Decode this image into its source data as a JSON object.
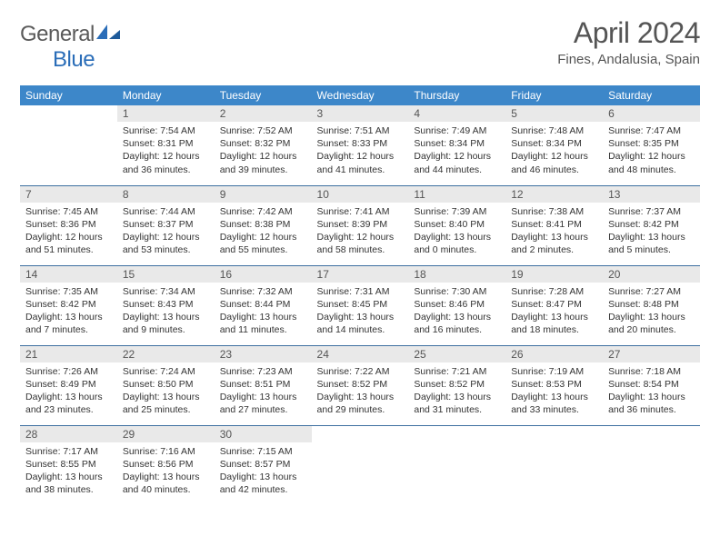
{
  "brand": {
    "word1": "General",
    "word2": "Blue"
  },
  "title": "April 2024",
  "location": "Fines, Andalusia, Spain",
  "colors": {
    "header_bg": "#3d87c9",
    "header_text": "#ffffff",
    "daynum_bg": "#e9e9e9",
    "row_border": "#3d6fa0",
    "brand_gray": "#5a5a5a",
    "brand_blue": "#2a6db8",
    "text": "#333333",
    "title_color": "#555555"
  },
  "weekdays": [
    "Sunday",
    "Monday",
    "Tuesday",
    "Wednesday",
    "Thursday",
    "Friday",
    "Saturday"
  ],
  "weeks": [
    [
      null,
      {
        "n": "1",
        "sr": "7:54 AM",
        "ss": "8:31 PM",
        "dl": "12 hours and 36 minutes."
      },
      {
        "n": "2",
        "sr": "7:52 AM",
        "ss": "8:32 PM",
        "dl": "12 hours and 39 minutes."
      },
      {
        "n": "3",
        "sr": "7:51 AM",
        "ss": "8:33 PM",
        "dl": "12 hours and 41 minutes."
      },
      {
        "n": "4",
        "sr": "7:49 AM",
        "ss": "8:34 PM",
        "dl": "12 hours and 44 minutes."
      },
      {
        "n": "5",
        "sr": "7:48 AM",
        "ss": "8:34 PM",
        "dl": "12 hours and 46 minutes."
      },
      {
        "n": "6",
        "sr": "7:47 AM",
        "ss": "8:35 PM",
        "dl": "12 hours and 48 minutes."
      }
    ],
    [
      {
        "n": "7",
        "sr": "7:45 AM",
        "ss": "8:36 PM",
        "dl": "12 hours and 51 minutes."
      },
      {
        "n": "8",
        "sr": "7:44 AM",
        "ss": "8:37 PM",
        "dl": "12 hours and 53 minutes."
      },
      {
        "n": "9",
        "sr": "7:42 AM",
        "ss": "8:38 PM",
        "dl": "12 hours and 55 minutes."
      },
      {
        "n": "10",
        "sr": "7:41 AM",
        "ss": "8:39 PM",
        "dl": "12 hours and 58 minutes."
      },
      {
        "n": "11",
        "sr": "7:39 AM",
        "ss": "8:40 PM",
        "dl": "13 hours and 0 minutes."
      },
      {
        "n": "12",
        "sr": "7:38 AM",
        "ss": "8:41 PM",
        "dl": "13 hours and 2 minutes."
      },
      {
        "n": "13",
        "sr": "7:37 AM",
        "ss": "8:42 PM",
        "dl": "13 hours and 5 minutes."
      }
    ],
    [
      {
        "n": "14",
        "sr": "7:35 AM",
        "ss": "8:42 PM",
        "dl": "13 hours and 7 minutes."
      },
      {
        "n": "15",
        "sr": "7:34 AM",
        "ss": "8:43 PM",
        "dl": "13 hours and 9 minutes."
      },
      {
        "n": "16",
        "sr": "7:32 AM",
        "ss": "8:44 PM",
        "dl": "13 hours and 11 minutes."
      },
      {
        "n": "17",
        "sr": "7:31 AM",
        "ss": "8:45 PM",
        "dl": "13 hours and 14 minutes."
      },
      {
        "n": "18",
        "sr": "7:30 AM",
        "ss": "8:46 PM",
        "dl": "13 hours and 16 minutes."
      },
      {
        "n": "19",
        "sr": "7:28 AM",
        "ss": "8:47 PM",
        "dl": "13 hours and 18 minutes."
      },
      {
        "n": "20",
        "sr": "7:27 AM",
        "ss": "8:48 PM",
        "dl": "13 hours and 20 minutes."
      }
    ],
    [
      {
        "n": "21",
        "sr": "7:26 AM",
        "ss": "8:49 PM",
        "dl": "13 hours and 23 minutes."
      },
      {
        "n": "22",
        "sr": "7:24 AM",
        "ss": "8:50 PM",
        "dl": "13 hours and 25 minutes."
      },
      {
        "n": "23",
        "sr": "7:23 AM",
        "ss": "8:51 PM",
        "dl": "13 hours and 27 minutes."
      },
      {
        "n": "24",
        "sr": "7:22 AM",
        "ss": "8:52 PM",
        "dl": "13 hours and 29 minutes."
      },
      {
        "n": "25",
        "sr": "7:21 AM",
        "ss": "8:52 PM",
        "dl": "13 hours and 31 minutes."
      },
      {
        "n": "26",
        "sr": "7:19 AM",
        "ss": "8:53 PM",
        "dl": "13 hours and 33 minutes."
      },
      {
        "n": "27",
        "sr": "7:18 AM",
        "ss": "8:54 PM",
        "dl": "13 hours and 36 minutes."
      }
    ],
    [
      {
        "n": "28",
        "sr": "7:17 AM",
        "ss": "8:55 PM",
        "dl": "13 hours and 38 minutes."
      },
      {
        "n": "29",
        "sr": "7:16 AM",
        "ss": "8:56 PM",
        "dl": "13 hours and 40 minutes."
      },
      {
        "n": "30",
        "sr": "7:15 AM",
        "ss": "8:57 PM",
        "dl": "13 hours and 42 minutes."
      },
      null,
      null,
      null,
      null
    ]
  ],
  "labels": {
    "sunrise": "Sunrise:",
    "sunset": "Sunset:",
    "daylight": "Daylight:"
  }
}
